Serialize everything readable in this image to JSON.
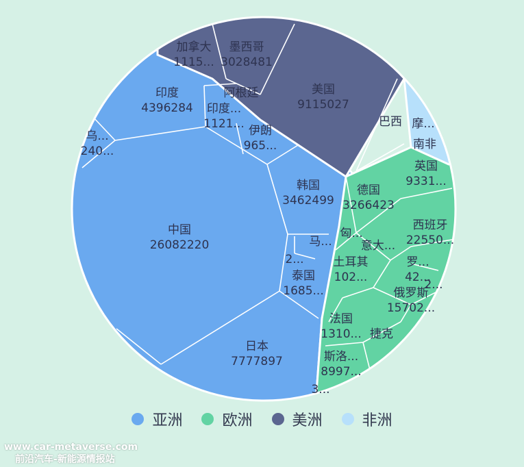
{
  "chart_data": {
    "type": "voronoi-treemap",
    "title": "",
    "legend": {
      "position": "bottom-center"
    },
    "groups": [
      {
        "name": "亚洲",
        "color": "#6aa9ef"
      },
      {
        "name": "欧洲",
        "color": "#62d3a3"
      },
      {
        "name": "美洲",
        "color": "#5b6690"
      },
      {
        "name": "非洲",
        "color": "#b7e0fb"
      }
    ],
    "cells": [
      {
        "group": "亚洲",
        "name": "中国",
        "value": "26082220"
      },
      {
        "group": "亚洲",
        "name": "日本",
        "value": "7777897"
      },
      {
        "group": "亚洲",
        "name": "印度",
        "value": "4396284"
      },
      {
        "group": "亚洲",
        "name": "韩国",
        "value": "3462499"
      },
      {
        "group": "亚洲",
        "name": "泰国",
        "value": "1685..."
      },
      {
        "group": "亚洲",
        "name": "印度...",
        "value": "1121..."
      },
      {
        "group": "亚洲",
        "name": "伊朗",
        "value": "965..."
      },
      {
        "group": "亚洲",
        "name": "乌...",
        "value": "240..."
      },
      {
        "group": "亚洲",
        "name": "马...",
        "value": ""
      },
      {
        "group": "亚洲",
        "name": "2...",
        "value": ""
      },
      {
        "group": "美洲",
        "name": "美国",
        "value": "9115027"
      },
      {
        "group": "美洲",
        "name": "墨西哥",
        "value": "3028481"
      },
      {
        "group": "美洲",
        "name": "加拿大",
        "value": "1115..."
      },
      {
        "group": "美洲",
        "name": "阿根廷",
        "value": ""
      },
      {
        "group": "美洲",
        "name": "巴西",
        "value": ""
      },
      {
        "group": "欧洲",
        "name": "德国",
        "value": "3266423"
      },
      {
        "group": "欧洲",
        "name": "西班牙",
        "value": "22550..."
      },
      {
        "group": "欧洲",
        "name": "俄罗斯",
        "value": "15702..."
      },
      {
        "group": "欧洲",
        "name": "法国",
        "value": "1310..."
      },
      {
        "group": "欧洲",
        "name": "英国",
        "value": "9331..."
      },
      {
        "group": "欧洲",
        "name": "斯洛...",
        "value": "8997..."
      },
      {
        "group": "欧洲",
        "name": "土耳其",
        "value": "102..."
      },
      {
        "group": "欧洲",
        "name": "罗...",
        "value": "42..."
      },
      {
        "group": "欧洲",
        "name": "意大...",
        "value": ""
      },
      {
        "group": "欧洲",
        "name": "捷克",
        "value": ""
      },
      {
        "group": "欧洲",
        "name": "匈...",
        "value": ""
      },
      {
        "group": "欧洲",
        "name": "2...",
        "value": ""
      },
      {
        "group": "欧洲",
        "name": "3...",
        "value": ""
      },
      {
        "group": "非洲",
        "name": "南非",
        "value": ""
      },
      {
        "group": "非洲",
        "name": "摩...",
        "value": ""
      }
    ]
  },
  "watermark": {
    "line1": "www.car-metaverse.com",
    "line2": "前沿汽车-新能源情报站"
  }
}
